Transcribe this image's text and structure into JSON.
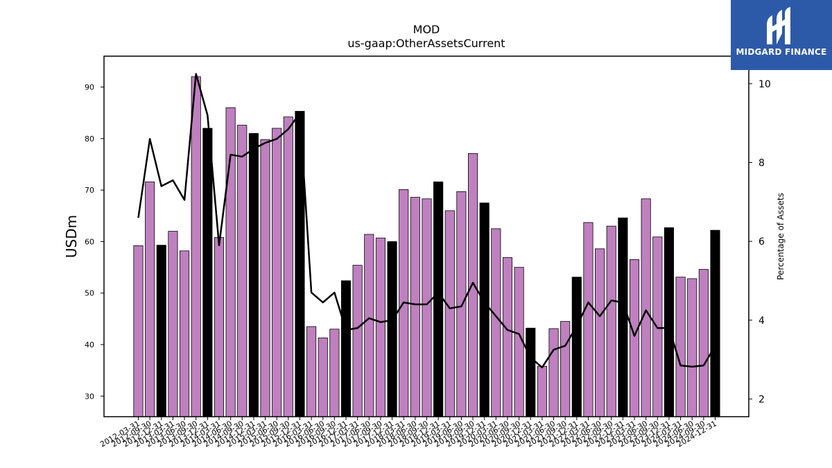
{
  "logo": {
    "text": "MIDGARD FINANCE"
  },
  "chart_data": {
    "type": "bar",
    "title": "MOD",
    "subtitle": "us-gaap:OtherAssetsCurrent",
    "ylabel": "USDm",
    "ylabel_right": "Percentage of Assets",
    "ylim": [
      26,
      96
    ],
    "ylim_right": [
      1.55,
      10.7
    ],
    "yticks": [
      30,
      40,
      50,
      60,
      70,
      80,
      90
    ],
    "yticks_right": [
      2,
      4,
      6,
      8,
      10
    ],
    "colors": {
      "bar": "#bf80bf",
      "bar_q4": "#000000",
      "line": "#000000"
    },
    "categories": [
      "2012-03-31",
      "2012-09-30",
      "2012-12-31",
      "2013-03-31",
      "2013-06-30",
      "2013-09-30",
      "2013-12-31",
      "2014-03-31",
      "2014-06-30",
      "2014-09-30",
      "2014-12-31",
      "2015-03-31",
      "2015-06-30",
      "2015-09-30",
      "2015-12-31",
      "2016-03-31",
      "2016-06-30",
      "2016-09-30",
      "2016-12-31",
      "2017-03-31",
      "2017-06-30",
      "2017-09-30",
      "2017-12-31",
      "2018-03-31",
      "2018-06-30",
      "2018-09-30",
      "2018-12-31",
      "2019-03-31",
      "2019-06-30",
      "2019-09-30",
      "2019-12-31",
      "2020-03-31",
      "2020-06-30",
      "2020-09-30",
      "2020-12-31",
      "2021-03-31",
      "2021-06-30",
      "2021-09-30",
      "2021-12-31",
      "2022-03-31",
      "2022-06-30",
      "2022-09-30",
      "2022-12-31",
      "2023-03-31",
      "2023-06-30",
      "2023-09-30",
      "2023-12-31",
      "2024-03-31",
      "2024-06-30",
      "2024-09-30",
      "2024-12-31"
    ],
    "series": [
      {
        "type": "bar",
        "values": [
          59.2,
          71.6,
          59.3,
          62.0,
          58.2,
          92.0,
          82.0,
          60.8,
          86.0,
          82.6,
          81.0,
          79.8,
          82.0,
          84.2,
          85.3,
          43.5,
          41.3,
          43.0,
          52.4,
          55.4,
          61.4,
          60.7,
          60.0,
          70.1,
          68.6,
          68.3,
          71.6,
          66.0,
          69.7,
          77.1,
          67.5,
          62.5,
          56.9,
          55.0,
          43.2,
          35.8,
          43.1,
          44.5,
          53.1,
          63.7,
          58.6,
          63.0,
          64.6,
          56.5,
          68.3,
          60.9,
          62.7,
          53.1,
          52.8,
          54.6,
          62.2
        ]
      },
      {
        "type": "line",
        "axis": "right",
        "values": [
          6.6,
          8.6,
          7.4,
          7.55,
          7.05,
          10.25,
          9.2,
          5.9,
          8.2,
          8.15,
          8.35,
          8.5,
          8.6,
          8.85,
          9.25,
          4.7,
          4.45,
          4.7,
          3.75,
          3.8,
          4.05,
          3.95,
          4.0,
          4.45,
          4.4,
          4.4,
          4.7,
          4.3,
          4.35,
          4.95,
          4.45,
          4.1,
          3.75,
          3.65,
          3.05,
          2.8,
          3.25,
          3.35,
          3.85,
          4.45,
          4.1,
          4.5,
          4.45,
          3.6,
          4.25,
          3.8,
          3.8,
          2.85,
          2.82,
          2.85,
          3.35
        ]
      }
    ]
  }
}
